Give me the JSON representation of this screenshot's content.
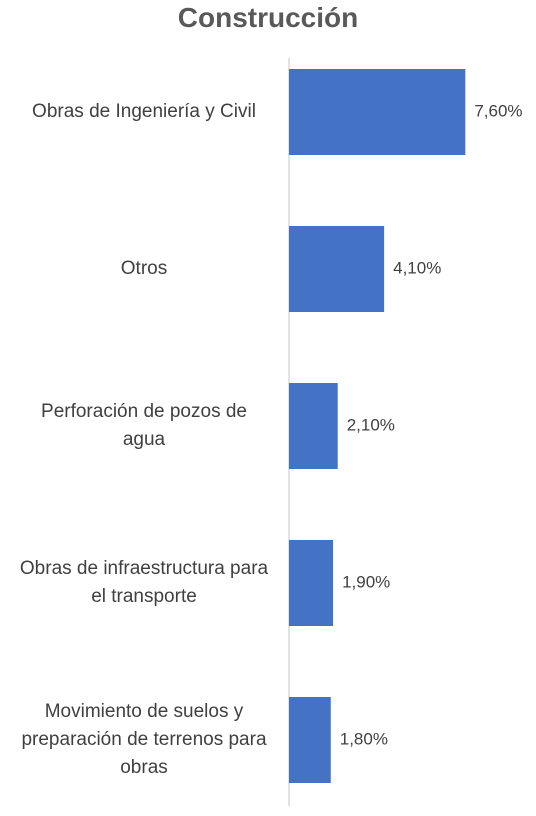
{
  "chart_data": {
    "type": "bar",
    "orientation": "horizontal",
    "title": "Construcción",
    "categories": [
      "Obras de Ingeniería y Civil",
      "Otros",
      "Perforación de pozos de agua",
      "Obras de infraestructura para el transporte",
      "Movimiento de suelos y preparación de terrenos para obras"
    ],
    "values": [
      7.6,
      4.1,
      2.1,
      1.9,
      1.8
    ],
    "value_labels": [
      "7,60%",
      "4,10%",
      "2,10%",
      "1,90%",
      "1,80%"
    ],
    "color": "#4472c4"
  }
}
